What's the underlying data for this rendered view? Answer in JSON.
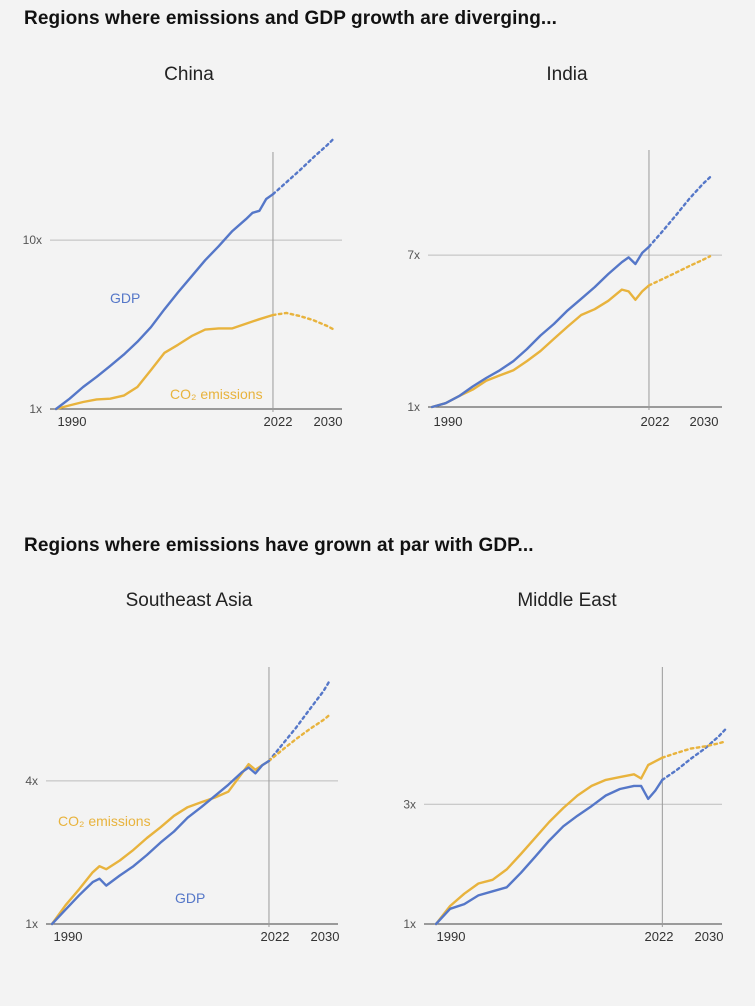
{
  "sections": {
    "top_title": "Regions where emissions and GDP growth are diverging...",
    "bottom_title": "Regions where emissions have grown at par with GDP..."
  },
  "colors": {
    "gdp": "#5577c8",
    "co2": "#e8b33d",
    "grid": "#bdbdbd",
    "divider": "#9a9a9a"
  },
  "chart_data": [
    {
      "type": "line",
      "title": "China",
      "x_ticks": [
        "1990",
        "2022",
        "2030"
      ],
      "y_ticks": [
        "1x",
        "10x"
      ],
      "y_scale": "log",
      "xlim": [
        1990,
        2031
      ],
      "ylim": [
        1,
        48
      ],
      "divider_year": 2022,
      "series": [
        {
          "name": "GDP",
          "label_text": "GDP",
          "color": "#5577c8",
          "x": [
            1990,
            1992,
            1994,
            1996,
            1998,
            2000,
            2002,
            2004,
            2006,
            2008,
            2010,
            2012,
            2014,
            2016,
            2018,
            2019,
            2020,
            2021,
            2022
          ],
          "y": [
            1.0,
            1.15,
            1.35,
            1.55,
            1.8,
            2.1,
            2.5,
            3.05,
            3.9,
            4.9,
            6.1,
            7.6,
            9.2,
            11.3,
            13.3,
            14.5,
            14.9,
            17.5,
            18.7
          ]
        },
        {
          "name": "CO2 emissions",
          "label_text": "CO₂ emissions",
          "color": "#e8b33d",
          "x": [
            1990,
            1992,
            1994,
            1996,
            1998,
            2000,
            2002,
            2004,
            2006,
            2008,
            2010,
            2012,
            2014,
            2016,
            2018,
            2020,
            2022
          ],
          "y": [
            1.0,
            1.05,
            1.1,
            1.14,
            1.15,
            1.2,
            1.35,
            1.7,
            2.15,
            2.4,
            2.7,
            2.95,
            3.0,
            3.0,
            3.2,
            3.4,
            3.6
          ]
        }
      ],
      "projections": [
        {
          "series": "GDP",
          "x": [
            2022,
            2024,
            2026,
            2028,
            2030,
            2031
          ],
          "y": [
            18.7,
            22,
            26,
            31,
            36.5,
            40
          ]
        },
        {
          "series": "CO2 emissions",
          "x": [
            2022,
            2024,
            2026,
            2028,
            2030,
            2031
          ],
          "y": [
            3.6,
            3.7,
            3.55,
            3.35,
            3.1,
            2.95
          ]
        }
      ]
    },
    {
      "type": "line",
      "title": "India",
      "x_ticks": [
        "1990",
        "2022",
        "2030"
      ],
      "y_ticks": [
        "1x",
        "7x"
      ],
      "y_scale": "log",
      "xlim": [
        1990,
        2031
      ],
      "ylim": [
        1,
        19.8
      ],
      "divider_year": 2022,
      "series": [
        {
          "name": "GDP",
          "label_text": "",
          "color": "#5577c8",
          "x": [
            1990,
            1992,
            1994,
            1996,
            1998,
            2000,
            2002,
            2004,
            2006,
            2008,
            2010,
            2012,
            2014,
            2016,
            2018,
            2019,
            2020,
            2021,
            2022
          ],
          "y": [
            1.0,
            1.05,
            1.15,
            1.3,
            1.45,
            1.6,
            1.8,
            2.1,
            2.5,
            2.9,
            3.45,
            4.0,
            4.65,
            5.5,
            6.4,
            6.8,
            6.25,
            7.2,
            7.8
          ]
        },
        {
          "name": "CO2 emissions",
          "label_text": "",
          "color": "#e8b33d",
          "x": [
            1990,
            1992,
            1994,
            1996,
            1998,
            2000,
            2002,
            2004,
            2006,
            2008,
            2010,
            2012,
            2014,
            2016,
            2018,
            2019,
            2020,
            2021,
            2022
          ],
          "y": [
            1.0,
            1.05,
            1.15,
            1.25,
            1.4,
            1.5,
            1.6,
            1.8,
            2.05,
            2.4,
            2.8,
            3.25,
            3.5,
            3.9,
            4.5,
            4.4,
            3.95,
            4.4,
            4.75
          ]
        }
      ],
      "projections": [
        {
          "series": "GDP",
          "x": [
            2022,
            2024,
            2026,
            2028,
            2030,
            2031
          ],
          "y": [
            7.8,
            9.5,
            11.7,
            14.5,
            17.5,
            19.0
          ]
        },
        {
          "series": "CO2 emissions",
          "x": [
            2022,
            2024,
            2026,
            2028,
            2030,
            2031
          ],
          "y": [
            4.75,
            5.15,
            5.6,
            6.1,
            6.6,
            6.9
          ]
        }
      ]
    },
    {
      "type": "line",
      "title": "Southeast Asia",
      "x_ticks": [
        "1990",
        "2022",
        "2030"
      ],
      "y_ticks": [
        "1x",
        "4x"
      ],
      "y_scale": "log",
      "xlim": [
        1990,
        2031
      ],
      "ylim": [
        1,
        12.4
      ],
      "divider_year": 2022,
      "series": [
        {
          "name": "GDP",
          "label_text": "GDP",
          "color": "#5577c8",
          "x": [
            1990,
            1992,
            1994,
            1996,
            1997,
            1998,
            2000,
            2002,
            2004,
            2006,
            2008,
            2010,
            2012,
            2014,
            2016,
            2018,
            2019,
            2020,
            2021,
            2022
          ],
          "y": [
            1.0,
            1.15,
            1.32,
            1.5,
            1.55,
            1.45,
            1.6,
            1.75,
            1.95,
            2.2,
            2.45,
            2.8,
            3.1,
            3.45,
            3.85,
            4.35,
            4.55,
            4.3,
            4.65,
            4.85
          ]
        },
        {
          "name": "CO2 emissions",
          "label_text": "CO₂ emissions",
          "color": "#e8b33d",
          "x": [
            1990,
            1992,
            1994,
            1996,
            1997,
            1998,
            2000,
            2002,
            2004,
            2006,
            2008,
            2010,
            2012,
            2014,
            2016,
            2018,
            2019,
            2020,
            2021,
            2022
          ],
          "y": [
            1.0,
            1.2,
            1.4,
            1.65,
            1.75,
            1.7,
            1.85,
            2.05,
            2.3,
            2.55,
            2.85,
            3.1,
            3.25,
            3.4,
            3.6,
            4.3,
            4.7,
            4.45,
            4.65,
            4.85
          ]
        }
      ],
      "projections": [
        {
          "series": "GDP",
          "x": [
            2022,
            2024,
            2026,
            2028,
            2030,
            2031
          ],
          "y": [
            4.85,
            5.7,
            6.7,
            8.0,
            9.5,
            10.6
          ]
        },
        {
          "series": "CO2 emissions",
          "x": [
            2022,
            2024,
            2026,
            2028,
            2030,
            2031
          ],
          "y": [
            4.85,
            5.4,
            6.0,
            6.6,
            7.2,
            7.6
          ]
        }
      ]
    },
    {
      "type": "line",
      "title": "Middle East",
      "x_ticks": [
        "1990",
        "2022",
        "2030"
      ],
      "y_ticks": [
        "1x",
        "3x"
      ],
      "y_scale": "log",
      "xlim": [
        1990,
        2031
      ],
      "ylim": [
        1,
        8.1
      ],
      "divider_year": 2022,
      "series": [
        {
          "name": "GDP",
          "label_text": "",
          "color": "#5577c8",
          "x": [
            1990,
            1992,
            1994,
            1996,
            1998,
            2000,
            2002,
            2004,
            2006,
            2008,
            2010,
            2012,
            2014,
            2016,
            2018,
            2019,
            2020,
            2021,
            2022
          ],
          "y": [
            1.0,
            1.15,
            1.2,
            1.3,
            1.35,
            1.4,
            1.6,
            1.85,
            2.15,
            2.45,
            2.7,
            2.95,
            3.25,
            3.45,
            3.55,
            3.55,
            3.15,
            3.4,
            3.75
          ]
        },
        {
          "name": "CO2 emissions",
          "label_text": "",
          "color": "#e8b33d",
          "x": [
            1990,
            1992,
            1994,
            1996,
            1998,
            2000,
            2002,
            2004,
            2006,
            2008,
            2010,
            2012,
            2014,
            2016,
            2018,
            2019,
            2020,
            2021,
            2022
          ],
          "y": [
            1.0,
            1.18,
            1.32,
            1.45,
            1.5,
            1.65,
            1.9,
            2.2,
            2.55,
            2.9,
            3.25,
            3.55,
            3.75,
            3.85,
            3.95,
            3.8,
            4.3,
            4.45,
            4.6
          ]
        }
      ],
      "projections": [
        {
          "series": "GDP",
          "x": [
            2022,
            2024,
            2026,
            2028,
            2030,
            2031
          ],
          "y": [
            3.75,
            4.1,
            4.55,
            5.0,
            5.6,
            6.0
          ]
        },
        {
          "series": "CO2 emissions",
          "x": [
            2022,
            2024,
            2026,
            2028,
            2030,
            2031
          ],
          "y": [
            4.6,
            4.8,
            5.0,
            5.1,
            5.25,
            5.35
          ]
        }
      ]
    }
  ]
}
